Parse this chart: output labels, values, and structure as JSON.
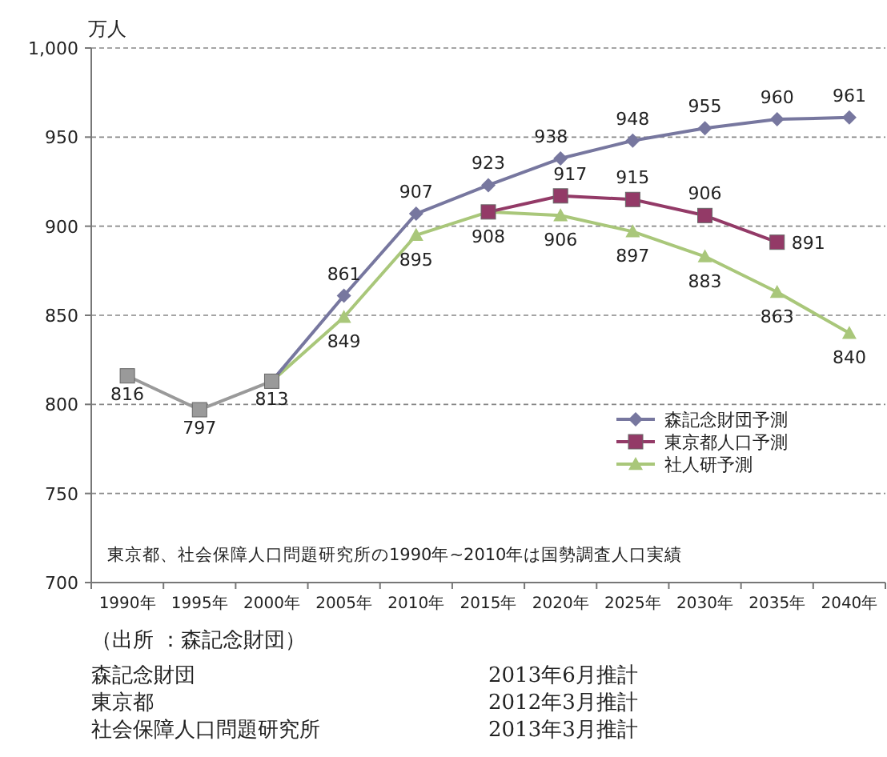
{
  "chart_data": {
    "type": "line",
    "ylabel": "万人",
    "categories": [
      "1990年",
      "1995年",
      "2000年",
      "2005年",
      "2010年",
      "2015年",
      "2020年",
      "2025年",
      "2030年",
      "2035年",
      "2040年"
    ],
    "ylim": [
      700,
      1000
    ],
    "yticks": [
      700,
      750,
      800,
      850,
      900,
      950,
      {
        "value": 1000,
        "label": "1,000"
      }
    ],
    "grid": "y",
    "legend": "bottom right",
    "line_style": "solid",
    "series": [
      {
        "color": "#9a9a9a",
        "marker": "square",
        "values": [
          816,
          797,
          813,
          null,
          null,
          null,
          null,
          null,
          null,
          null,
          null
        ],
        "value_labels": [
          "816",
          "797",
          "813",
          null,
          null,
          null,
          null,
          null,
          null,
          null,
          null
        ]
      },
      {
        "name": "森記念財団予測",
        "color": "#77779f",
        "marker": "diamond",
        "values": [
          null,
          null,
          813,
          861,
          907,
          923,
          938,
          948,
          955,
          960,
          961
        ],
        "value_labels": [
          null,
          null,
          null,
          "861",
          "907",
          "923",
          "938",
          "948",
          "955",
          "960",
          "961"
        ]
      },
      {
        "name": "東京都人口予測",
        "color": "#933a67",
        "marker": "square",
        "values": [
          null,
          null,
          null,
          null,
          null,
          908,
          917,
          915,
          906,
          891,
          null
        ],
        "value_labels": [
          null,
          null,
          null,
          null,
          null,
          null,
          "917",
          "915",
          "906",
          "891",
          null
        ]
      },
      {
        "name": "社人研予測",
        "color": "#a9c77a",
        "marker": "triangle",
        "values": [
          null,
          null,
          813,
          849,
          895,
          908,
          906,
          897,
          883,
          863,
          840
        ],
        "value_labels": [
          null,
          null,
          null,
          "849",
          "895",
          "908",
          "906",
          "897",
          "883",
          "863",
          "840"
        ]
      }
    ],
    "annotations": [
      "東京都、社会保障人口問題研究所の1990年~2010年は国勢調査人口実績",
      "（出所 ：森記念財団）",
      "森記念財団",
      "2013年6月推計",
      "東京都",
      "2012年3月推計",
      "社会保障人口問題研究所",
      "2013年3月推計"
    ]
  }
}
